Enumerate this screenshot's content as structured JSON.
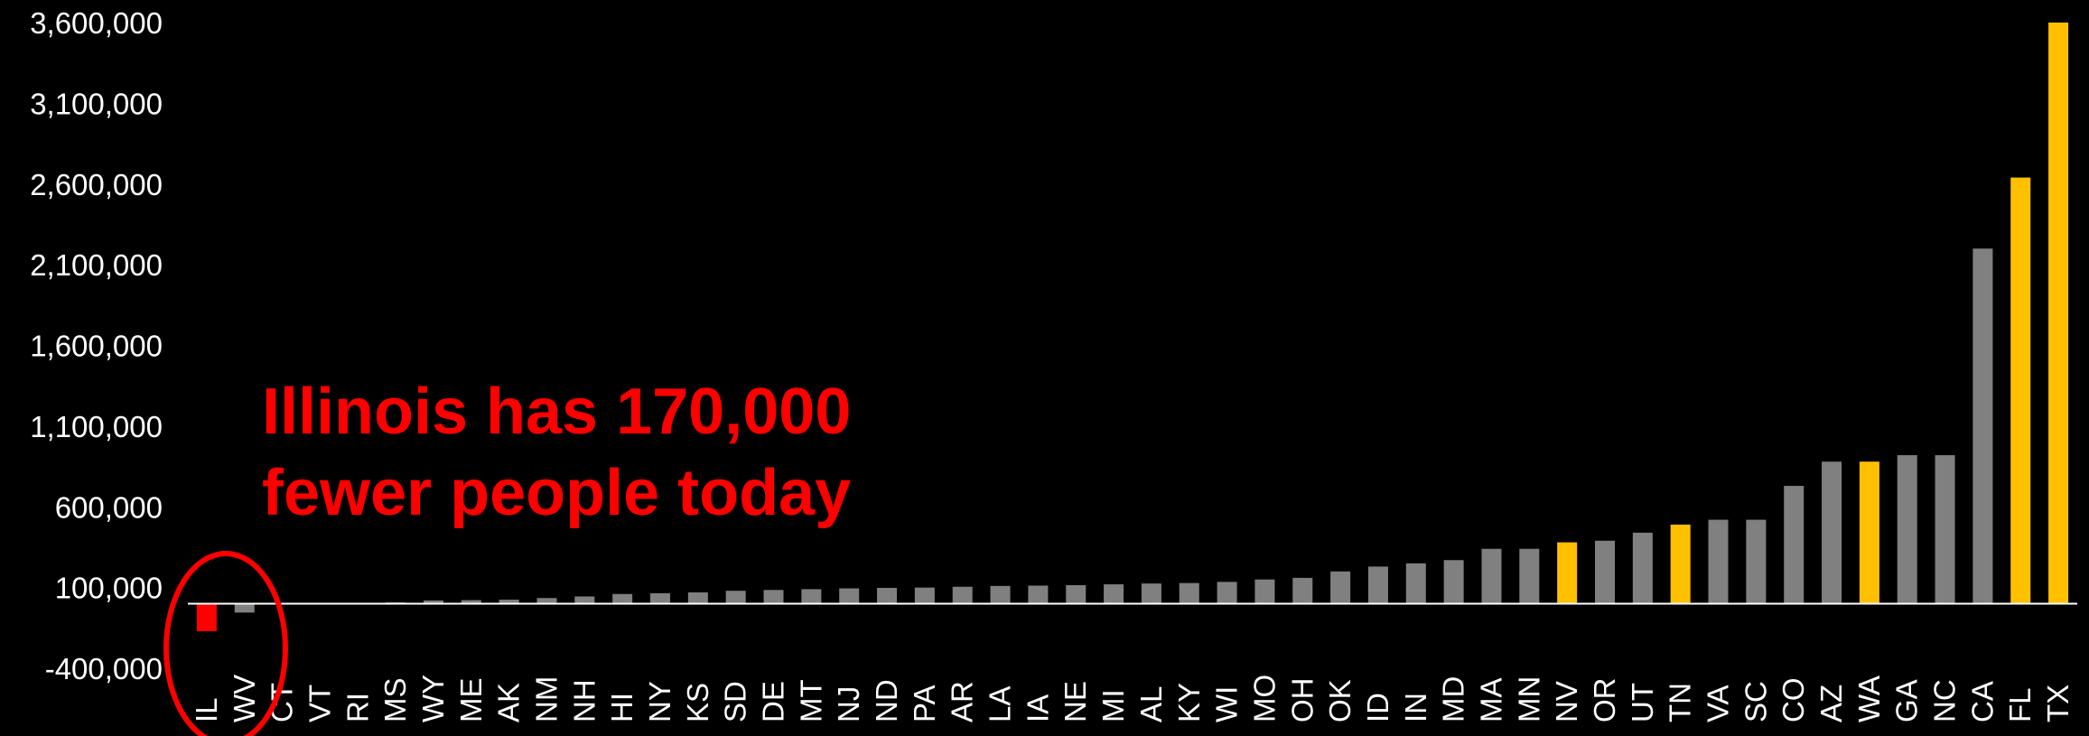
{
  "chart_data": {
    "type": "bar",
    "categories": [
      "IL",
      "WV",
      "CT",
      "VT",
      "RI",
      "MS",
      "WY",
      "ME",
      "AK",
      "NM",
      "NH",
      "HI",
      "NY",
      "KS",
      "SD",
      "DE",
      "MT",
      "NJ",
      "ND",
      "PA",
      "AR",
      "LA",
      "IA",
      "NE",
      "MI",
      "AL",
      "KY",
      "WI",
      "MO",
      "OH",
      "OK",
      "ID",
      "IN",
      "MD",
      "MA",
      "MN",
      "NV",
      "OR",
      "UT",
      "TN",
      "VA",
      "SC",
      "CO",
      "AZ",
      "WA",
      "GA",
      "NC",
      "CA",
      "FL",
      "TX"
    ],
    "values": [
      -170000,
      -55000,
      -5000,
      -2000,
      5000,
      8000,
      20000,
      22000,
      25000,
      35000,
      45000,
      60000,
      65000,
      70000,
      80000,
      85000,
      90000,
      95000,
      98000,
      100000,
      105000,
      110000,
      112000,
      115000,
      120000,
      125000,
      128000,
      135000,
      150000,
      160000,
      200000,
      230000,
      250000,
      270000,
      340000,
      340000,
      380000,
      390000,
      440000,
      490000,
      520000,
      520000,
      730000,
      880000,
      880000,
      920000,
      920000,
      2200000,
      2640000,
      3600000
    ],
    "bar_colors": [
      "#ff0000",
      "#808080",
      "#808080",
      "#808080",
      "#808080",
      "#808080",
      "#808080",
      "#808080",
      "#808080",
      "#808080",
      "#808080",
      "#808080",
      "#808080",
      "#808080",
      "#808080",
      "#808080",
      "#808080",
      "#808080",
      "#808080",
      "#808080",
      "#808080",
      "#808080",
      "#808080",
      "#808080",
      "#808080",
      "#808080",
      "#808080",
      "#808080",
      "#808080",
      "#808080",
      "#808080",
      "#808080",
      "#808080",
      "#808080",
      "#808080",
      "#808080",
      "#ffc000",
      "#808080",
      "#808080",
      "#ffc000",
      "#808080",
      "#808080",
      "#808080",
      "#808080",
      "#ffc000",
      "#808080",
      "#808080",
      "#808080",
      "#ffc000",
      "#ffc000"
    ],
    "ytick_labels": [
      "3,600,000",
      "3,100,000",
      "2,600,000",
      "2,100,000",
      "1,600,000",
      "1,100,000",
      "600,000",
      "100,000",
      "-400,000"
    ],
    "ytick_values": [
      3600000,
      3100000,
      2600000,
      2100000,
      1600000,
      1100000,
      600000,
      100000,
      -400000
    ],
    "ylim": [
      -400000,
      3600000
    ],
    "title": "",
    "xlabel": "",
    "ylabel": "",
    "grid": false,
    "annotation": {
      "line1": "Illinois has 170,000",
      "line2": "fewer people today",
      "color": "#ff0000"
    }
  }
}
